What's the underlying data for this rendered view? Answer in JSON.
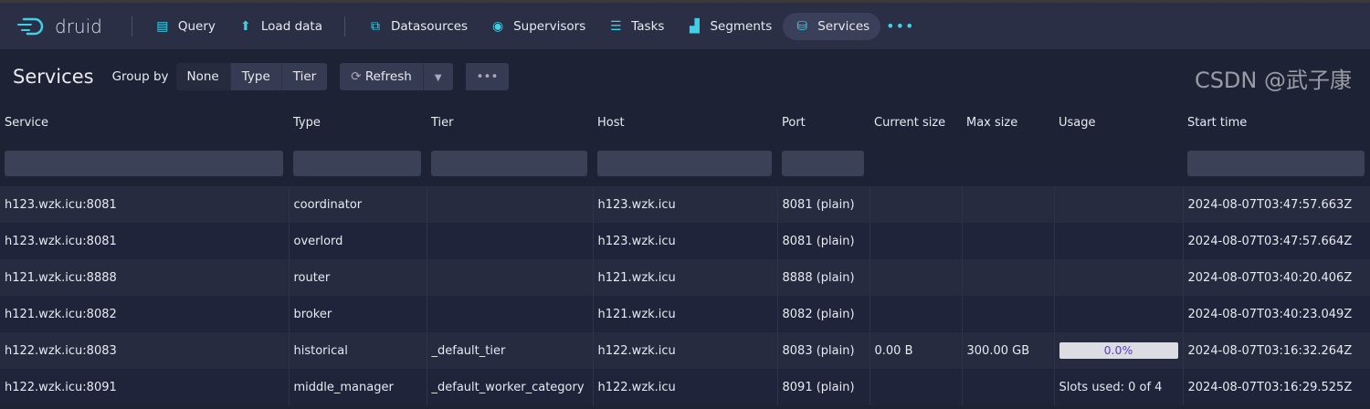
{
  "nav": {
    "logo": "druid",
    "items": [
      {
        "label": "Query",
        "icon": "query-icon"
      },
      {
        "label": "Load data",
        "icon": "upload-icon"
      },
      {
        "label": "Datasources",
        "icon": "datasources-icon"
      },
      {
        "label": "Supervisors",
        "icon": "eye-icon"
      },
      {
        "label": "Tasks",
        "icon": "tasks-icon"
      },
      {
        "label": "Segments",
        "icon": "segments-icon"
      },
      {
        "label": "Services",
        "icon": "database-icon",
        "active": true
      }
    ]
  },
  "toolbar": {
    "title": "Services",
    "group_by_label": "Group by",
    "group_options": [
      "None",
      "Type",
      "Tier"
    ],
    "selected_group": "None",
    "refresh_label": "Refresh"
  },
  "table": {
    "columns": [
      "Service",
      "Type",
      "Tier",
      "Host",
      "Port",
      "Current size",
      "Max size",
      "Usage",
      "Start time"
    ],
    "rows": [
      [
        "h123.wzk.icu:8081",
        "coordinator",
        "",
        "h123.wzk.icu",
        "8081 (plain)",
        "",
        "",
        "",
        "2024-08-07T03:47:57.663Z"
      ],
      [
        "h123.wzk.icu:8081",
        "overlord",
        "",
        "h123.wzk.icu",
        "8081 (plain)",
        "",
        "",
        "",
        "2024-08-07T03:47:57.664Z"
      ],
      [
        "h121.wzk.icu:8888",
        "router",
        "",
        "h121.wzk.icu",
        "8888 (plain)",
        "",
        "",
        "",
        "2024-08-07T03:40:20.406Z"
      ],
      [
        "h121.wzk.icu:8082",
        "broker",
        "",
        "h121.wzk.icu",
        "8082 (plain)",
        "",
        "",
        "",
        "2024-08-07T03:40:23.049Z"
      ],
      [
        "h122.wzk.icu:8083",
        "historical",
        "_default_tier",
        "h122.wzk.icu",
        "8083 (plain)",
        "0.00 B",
        "300.00 GB",
        "0.0%",
        "2024-08-07T03:16:32.264Z"
      ],
      [
        "h122.wzk.icu:8091",
        "middle_manager",
        "_default_worker_category",
        "h122.wzk.icu",
        "8091 (plain)",
        "",
        "",
        "Slots used: 0 of 4",
        "2024-08-07T03:16:29.525Z"
      ]
    ]
  },
  "usage_fraction": 0.0,
  "watermark": "CSDN @武子康",
  "colors": {
    "accent": "#3fd0e6",
    "nav_bg": "#2a2f45",
    "page_bg": "#1e2235"
  }
}
